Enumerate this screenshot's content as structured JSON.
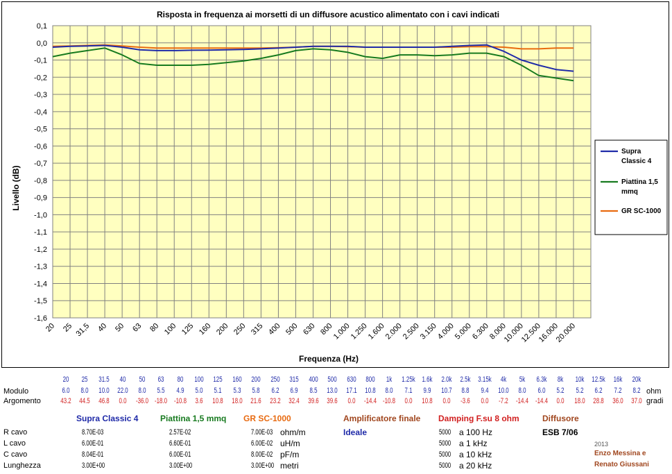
{
  "chart_data": {
    "type": "line",
    "title": "Risposta in frequenza ai morsetti di un diffusore acustico alimentato con i cavi indicati",
    "xlabel": "Frequenza (Hz)",
    "ylabel": "Livello (dB)",
    "ylim": [
      -1.6,
      0.1
    ],
    "yticks": [
      "0,1",
      "0,0",
      "-0,1",
      "-0,2",
      "-0,3",
      "-0,4",
      "-0,5",
      "-0,6",
      "-0,7",
      "-0,8",
      "-0,9",
      "-1,0",
      "-1,1",
      "-1,2",
      "-1,3",
      "-1,4",
      "-1,5",
      "-1,6"
    ],
    "categories": [
      "20",
      "25",
      "31,5",
      "40",
      "50",
      "63",
      "80",
      "100",
      "125",
      "160",
      "200",
      "250",
      "315",
      "400",
      "500",
      "630",
      "800",
      "1.000",
      "1.250",
      "1.600",
      "2.000",
      "2.500",
      "3.150",
      "4.000",
      "5.000",
      "6.300",
      "8.000",
      "10.000",
      "12.500",
      "16.000",
      "20.000"
    ],
    "grid": true,
    "plot_background": "#ffffc0",
    "legend_position": "right",
    "series": [
      {
        "name": "Supra Classic 4",
        "color": "#1f2aa8",
        "values": [
          -0.025,
          -0.02,
          -0.018,
          -0.015,
          -0.025,
          -0.04,
          -0.045,
          -0.045,
          -0.043,
          -0.042,
          -0.04,
          -0.038,
          -0.035,
          -0.03,
          -0.025,
          -0.02,
          -0.02,
          -0.02,
          -0.025,
          -0.025,
          -0.025,
          -0.025,
          -0.025,
          -0.02,
          -0.015,
          -0.012,
          -0.05,
          -0.1,
          -0.13,
          -0.155,
          -0.165
        ]
      },
      {
        "name": "Piattina 1,5 mmq",
        "color": "#177a1f",
        "values": [
          -0.08,
          -0.06,
          -0.045,
          -0.03,
          -0.07,
          -0.12,
          -0.13,
          -0.13,
          -0.13,
          -0.125,
          -0.115,
          -0.105,
          -0.09,
          -0.07,
          -0.045,
          -0.035,
          -0.04,
          -0.055,
          -0.08,
          -0.09,
          -0.07,
          -0.07,
          -0.075,
          -0.07,
          -0.06,
          -0.06,
          -0.08,
          -0.13,
          -0.19,
          -0.205,
          -0.22
        ]
      },
      {
        "name": "GR SC-1000",
        "color": "#e86a10",
        "values": [
          -0.02,
          -0.018,
          -0.015,
          -0.012,
          -0.018,
          -0.025,
          -0.03,
          -0.03,
          -0.03,
          -0.03,
          -0.03,
          -0.03,
          -0.03,
          -0.028,
          -0.025,
          -0.02,
          -0.02,
          -0.022,
          -0.025,
          -0.025,
          -0.025,
          -0.025,
          -0.025,
          -0.025,
          -0.022,
          -0.022,
          -0.025,
          -0.035,
          -0.035,
          -0.03,
          -0.03
        ]
      }
    ]
  },
  "legend_labels": {
    "s1_line1": "Supra",
    "s1_line2": "Classic 4",
    "s2_line1": "Piattina 1,5",
    "s2_line2": "mmq",
    "s3_line1": "GR SC-1000"
  },
  "speaker_table": {
    "freq": [
      "20",
      "25",
      "31.5",
      "40",
      "50",
      "63",
      "80",
      "100",
      "125",
      "160",
      "200",
      "250",
      "315",
      "400",
      "500",
      "630",
      "800",
      "1k",
      "1.25k",
      "1.6k",
      "2.0k",
      "2.5k",
      "3.15k",
      "4k",
      "5k",
      "6.3k",
      "8k",
      "10k",
      "12.5k",
      "16k",
      "20k"
    ],
    "modulo_label": "Modulo",
    "modulo": [
      "6.0",
      "8.0",
      "10.0",
      "22.0",
      "8.0",
      "5.5",
      "4.9",
      "5.0",
      "5.1",
      "5.3",
      "5.8",
      "6.2",
      "6.9",
      "8.5",
      "13.0",
      "17.1",
      "10.8",
      "8.0",
      "7.1",
      "9.9",
      "10.7",
      "8.8",
      "9.4",
      "10.0",
      "8.0",
      "6.0",
      "5.2",
      "5.2",
      "6.2",
      "7.2",
      "8.2"
    ],
    "modulo_unit": "ohm",
    "argomento_label": "Argomento",
    "argomento": [
      "43.2",
      "44.5",
      "46.8",
      "0.0",
      "-36.0",
      "-18.0",
      "-10.8",
      "3.6",
      "10.8",
      "18.0",
      "21.6",
      "23.2",
      "32.4",
      "39.6",
      "39.6",
      "0.0",
      "-14.4",
      "-10.8",
      "0.0",
      "10.8",
      "0.0",
      "-3.6",
      "0.0",
      "-7.2",
      "-14.4",
      "-14.4",
      "0.0",
      "18.0",
      "28.8",
      "36.0",
      "37.0"
    ],
    "argomento_unit": "gradi"
  },
  "cables": {
    "row_labels": [
      "R cavo",
      "L cavo",
      "C cavo",
      "Lunghezza"
    ],
    "supra": {
      "name": "Supra Classic 4",
      "values": [
        "8.70E-03",
        "6.00E-01",
        "8.04E-01",
        "3.00E+00"
      ]
    },
    "piattina": {
      "name": "Piattina 1,5 mmq",
      "values": [
        "2.57E-02",
        "6.60E-01",
        "6.00E-01",
        "3.00E+00"
      ]
    },
    "gr": {
      "name": "GR SC-1000",
      "values": [
        "7.00E-03",
        "6.00E-02",
        "8.00E-02",
        "3.00E+00"
      ]
    },
    "units": [
      "ohm/m",
      "uH/m",
      "pF/m",
      "metri"
    ]
  },
  "amplifier": {
    "title": "Amplificatore finale",
    "value": "Ideale"
  },
  "damping": {
    "title": "Damping F.su 8 ohm",
    "values": [
      "5000",
      "5000",
      "5000",
      "5000"
    ],
    "labels": [
      "a 100 Hz",
      "a 1 kHz",
      "a 10 kHz",
      "a 20 kHz"
    ]
  },
  "speaker": {
    "title": "Diffusore",
    "model": "ESB 7/06"
  },
  "credits": {
    "year": "2013",
    "line1": "Enzo Messina e",
    "line2": "Renato Giussani"
  }
}
